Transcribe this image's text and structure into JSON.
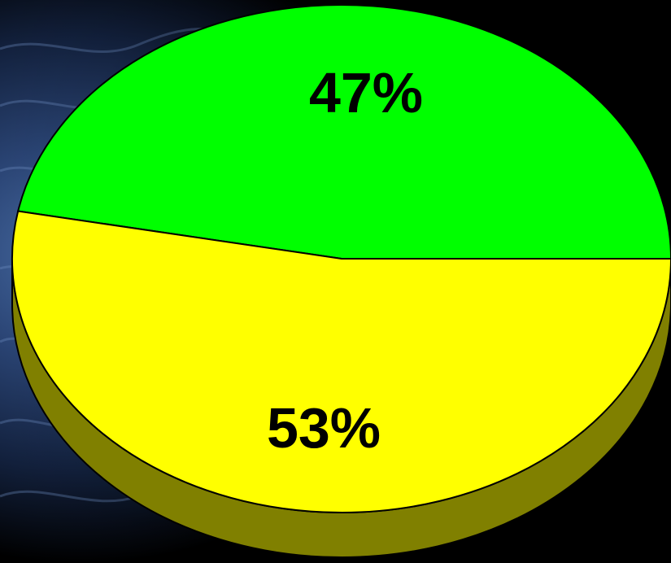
{
  "chart_data": {
    "type": "pie",
    "style": "3d",
    "slices": [
      {
        "label": "47%",
        "value": 47,
        "color": "#00FF00",
        "side_color": "#008000"
      },
      {
        "label": "53%",
        "value": 53,
        "color": "#FFFF00",
        "side_color": "#808000"
      }
    ],
    "legend": "none"
  },
  "background": {
    "description_colors": [
      "#1a2a4a",
      "#3b5b8c",
      "#000000"
    ]
  }
}
